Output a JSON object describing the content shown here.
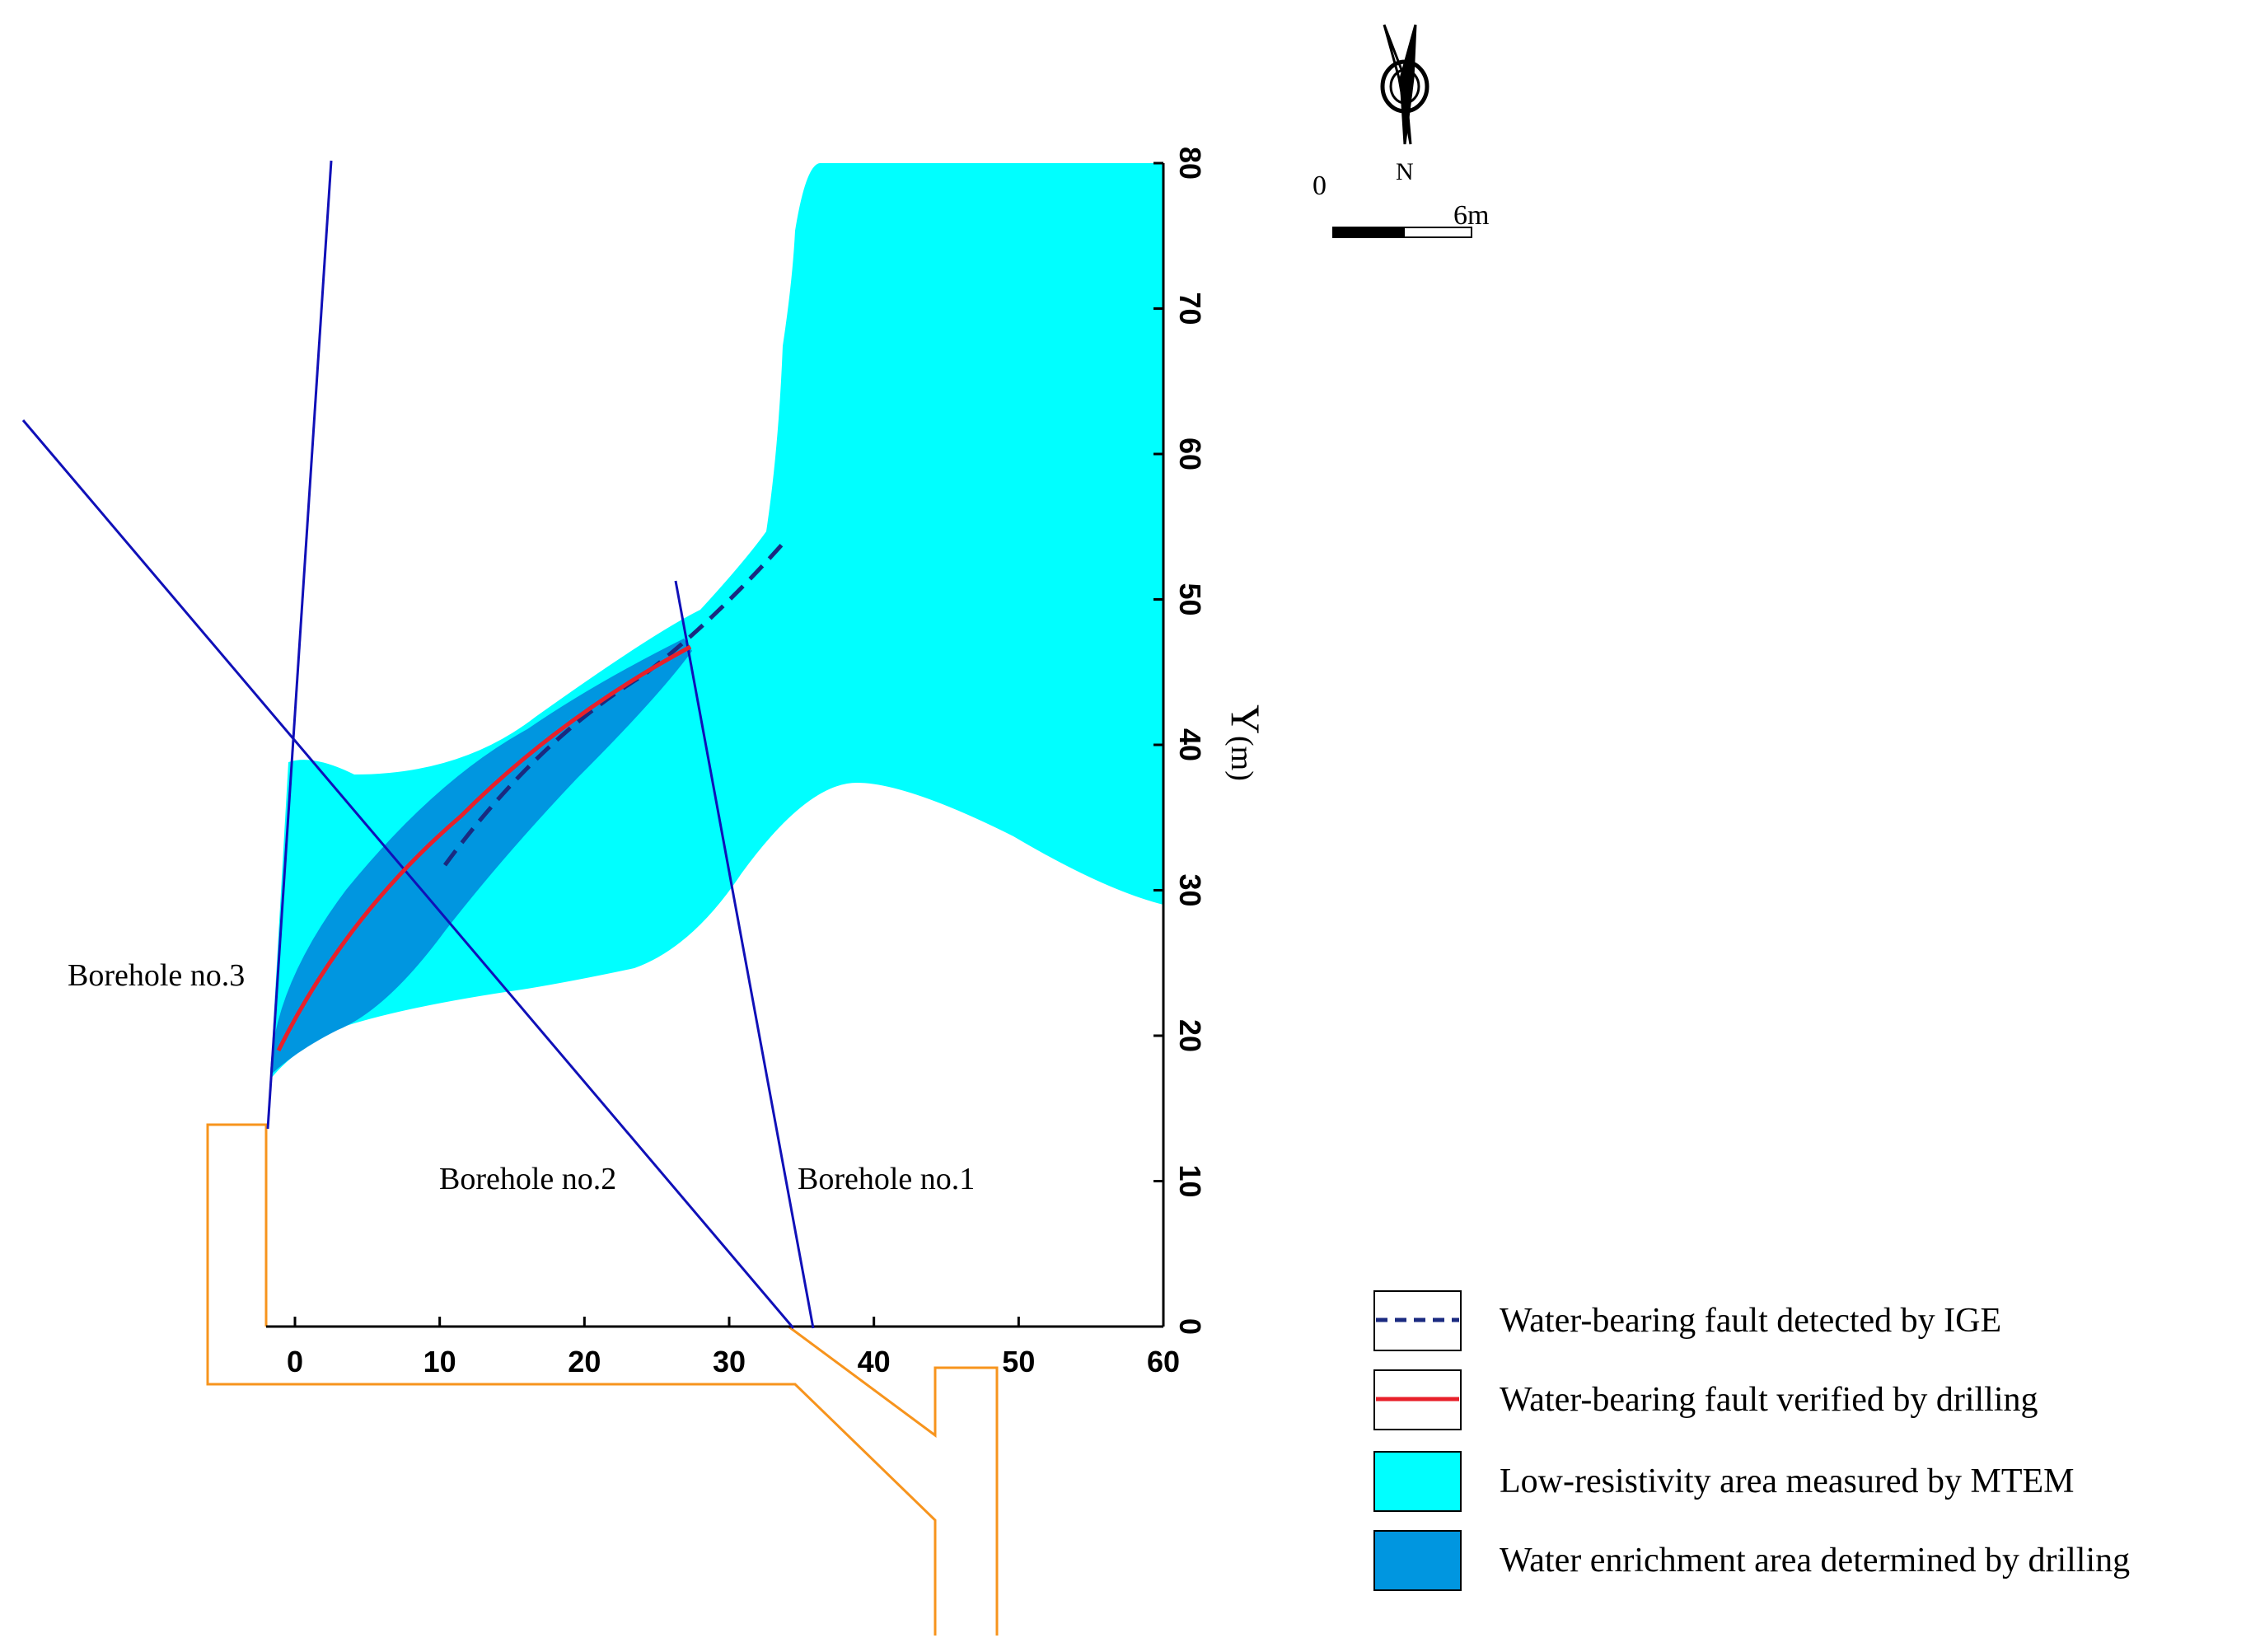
{
  "diagram": {
    "x_axis": {
      "ticks": [
        0,
        10,
        20,
        30,
        40,
        50,
        60
      ],
      "range": [
        -2,
        60
      ]
    },
    "y_axis": {
      "label": "Y",
      "unit": "(m)",
      "ticks": [
        0,
        10,
        20,
        30,
        40,
        50,
        60,
        70,
        80
      ],
      "range": [
        0,
        80
      ]
    },
    "boreholes": [
      {
        "label": "Borehole no.1"
      },
      {
        "label": "Borehole no.2"
      },
      {
        "label": "Borehole no.3"
      }
    ],
    "compass": {
      "label": "N"
    },
    "scale_bar": {
      "start_label": "0",
      "end_label": "6m"
    },
    "colors": {
      "low_resistivity": "#00FFFF",
      "water_enrichment": "#0096E0",
      "borehole_line": "#1010B8",
      "ige_fault": "#1A2A80",
      "drilling_fault": "#E8202A",
      "roadway": "#F7941D"
    },
    "legend": [
      {
        "type": "dashed-line",
        "color": "#1A2A80",
        "label": "Water-bearing fault detected by IGE"
      },
      {
        "type": "solid-line",
        "color": "#E8202A",
        "label": "Water-bearing fault verified by drilling"
      },
      {
        "type": "fill",
        "color": "#00FFFF",
        "label": "Low-resistivity area measured by MTEM"
      },
      {
        "type": "fill",
        "color": "#0096E0",
        "label": "Water enrichment area determined by drilling"
      }
    ]
  }
}
